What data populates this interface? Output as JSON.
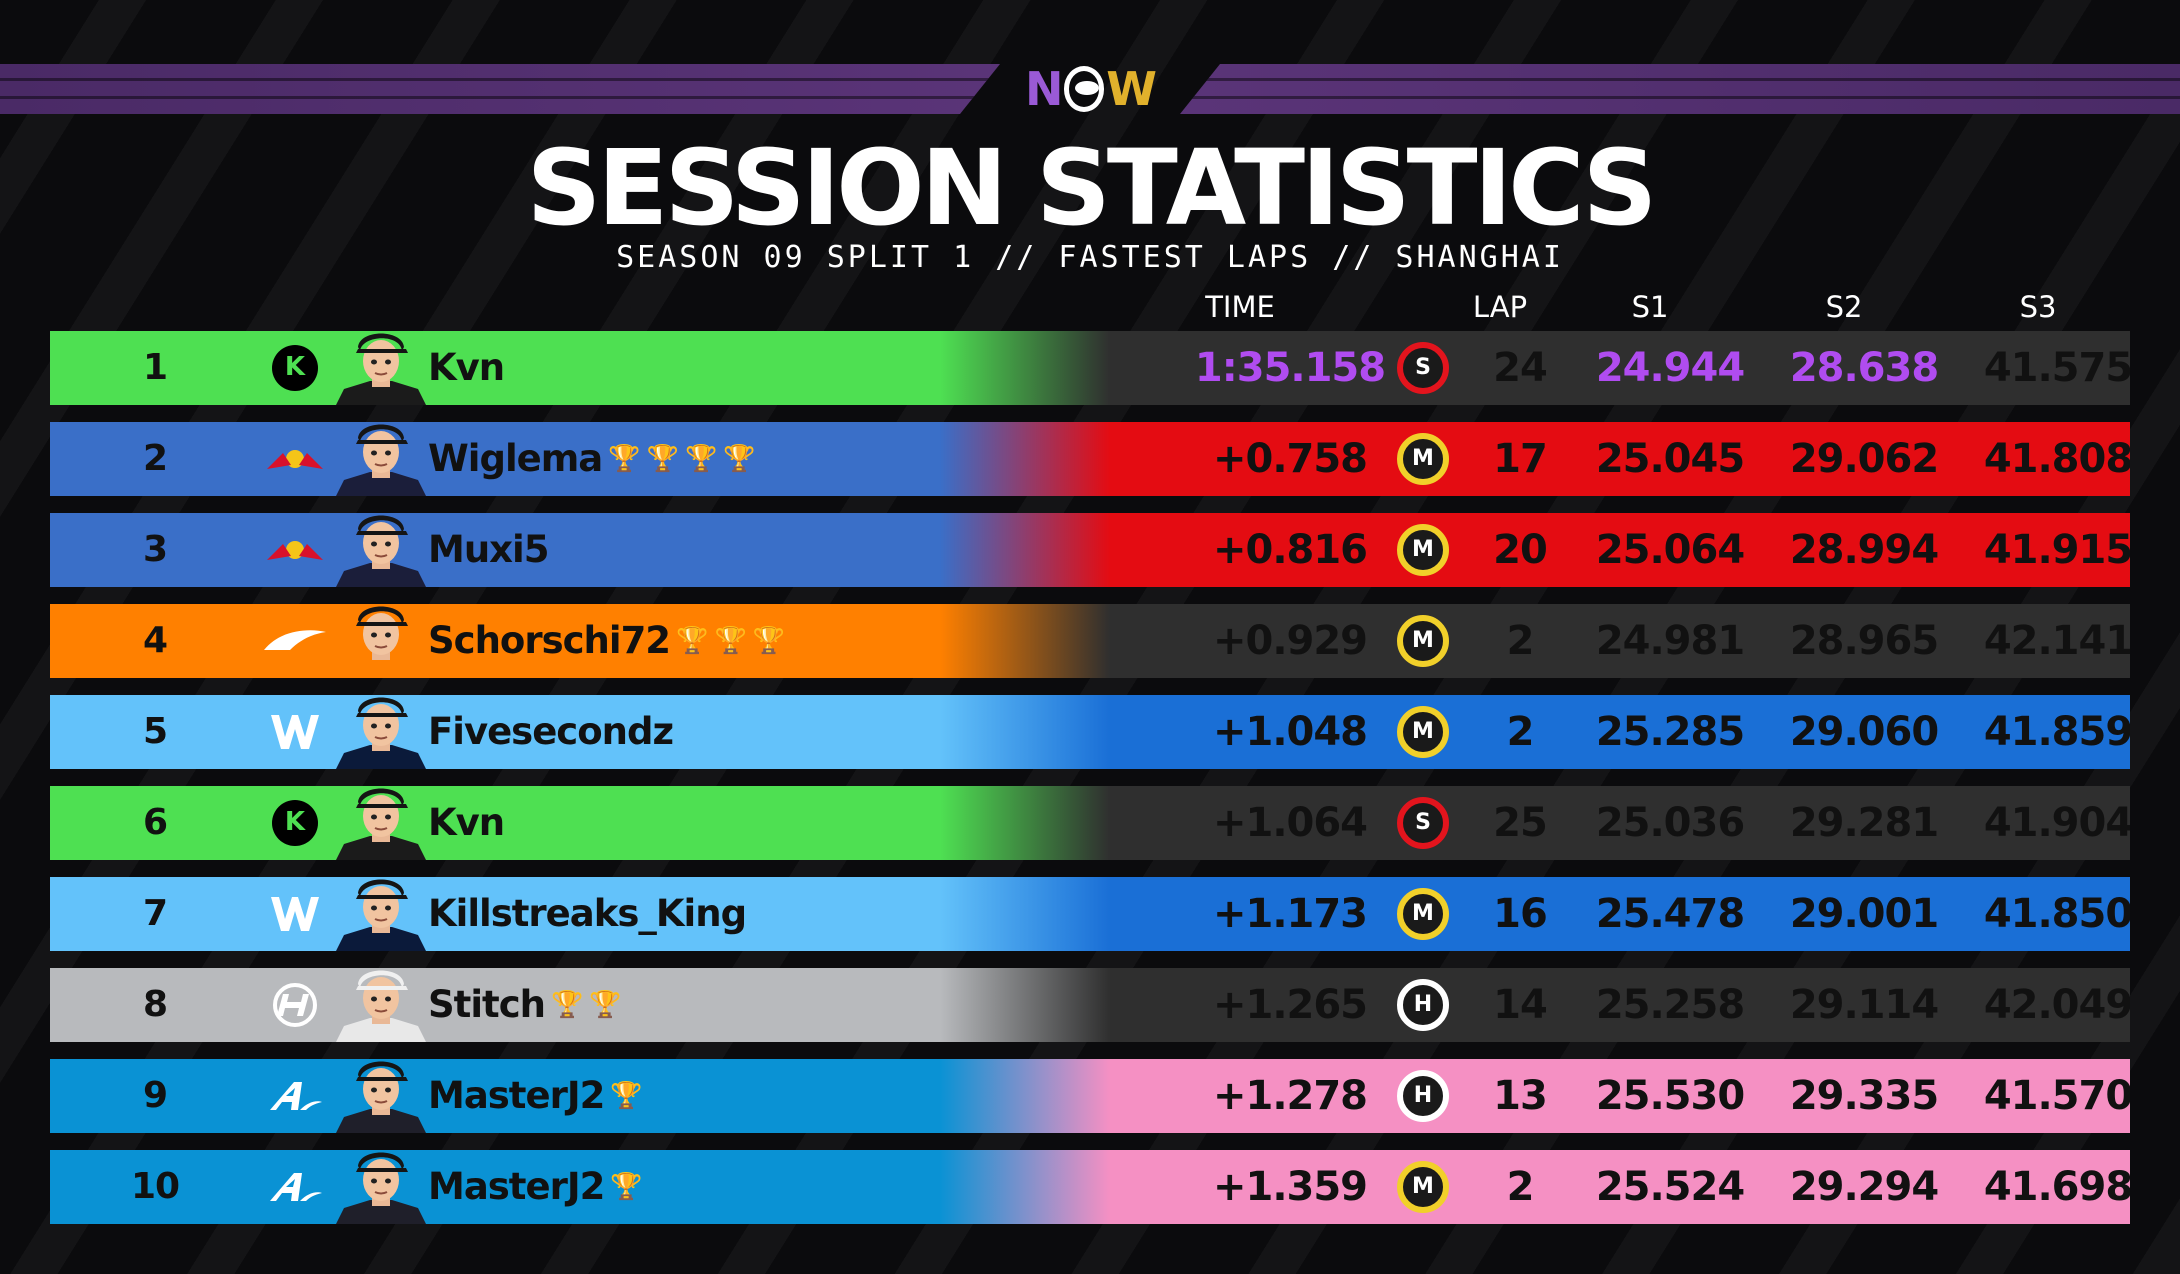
{
  "header": {
    "logo": {
      "n": "N",
      "w": "W"
    },
    "title": "SESSION STATISTICS",
    "subtitle": "SEASON 09 SPLIT 1 // FASTEST LAPS // SHANGHAI"
  },
  "columns": {
    "time": "TIME",
    "lap": "LAP",
    "s1": "S1",
    "s2": "S2",
    "s3": "S3"
  },
  "colors": {
    "purple": "#b04cf0",
    "soft": "#e3141d",
    "medium": "#f1d02a",
    "hard": "#ffffff"
  },
  "rows": [
    {
      "pos": "1",
      "team": "sauber",
      "team_icon": "sauber-k-icon",
      "team_color": "#4ee052",
      "data_color": "#2f2f2f",
      "name": "Kvn",
      "trophies": [],
      "time": "1:35.158",
      "tyre": "S",
      "lap": "24",
      "s1": "24.944",
      "s2": "28.638",
      "s3": "41.575",
      "time_purple": true,
      "s1_purple": true,
      "s2_purple": true
    },
    {
      "pos": "2",
      "team": "redbull",
      "team_icon": "redbull-icon",
      "team_color": "#3a6fc8",
      "data_color": "#e40c12",
      "name": "Wiglema",
      "trophies": [
        "🏆",
        "🏆",
        "🏆",
        "🏆"
      ],
      "time": "+0.758",
      "tyre": "M",
      "lap": "17",
      "s1": "25.045",
      "s2": "29.062",
      "s3": "41.808"
    },
    {
      "pos": "3",
      "team": "redbull",
      "team_icon": "redbull-icon",
      "team_color": "#3a6fc8",
      "data_color": "#e40c12",
      "name": "Muxi5",
      "trophies": [],
      "time": "+0.816",
      "tyre": "M",
      "lap": "20",
      "s1": "25.064",
      "s2": "28.994",
      "s3": "41.915"
    },
    {
      "pos": "4",
      "team": "mclaren",
      "team_icon": "mclaren-swoosh-icon",
      "team_color": "#ff8000",
      "data_color": "#2f2f2f",
      "name": "Schorschi72",
      "trophies": [
        "🏆",
        "🏆",
        "🏆"
      ],
      "time": "+0.929",
      "tyre": "M",
      "lap": "2",
      "s1": "24.981",
      "s2": "28.965",
      "s3": "42.141"
    },
    {
      "pos": "5",
      "team": "williams",
      "team_icon": "williams-w-icon",
      "team_color": "#63c2fa",
      "data_color": "#1a6fd6",
      "name": "Fivesecondz",
      "trophies": [],
      "time": "+1.048",
      "tyre": "M",
      "lap": "2",
      "s1": "25.285",
      "s2": "29.060",
      "s3": "41.859"
    },
    {
      "pos": "6",
      "team": "sauber",
      "team_icon": "sauber-k-icon",
      "team_color": "#4ee052",
      "data_color": "#2f2f2f",
      "name": "Kvn",
      "trophies": [],
      "time": "+1.064",
      "tyre": "S",
      "lap": "25",
      "s1": "25.036",
      "s2": "29.281",
      "s3": "41.904"
    },
    {
      "pos": "7",
      "team": "williams",
      "team_icon": "williams-w-icon",
      "team_color": "#63c2fa",
      "data_color": "#1a6fd6",
      "name": "Killstreaks_King",
      "trophies": [],
      "time": "+1.173",
      "tyre": "M",
      "lap": "16",
      "s1": "25.478",
      "s2": "29.001",
      "s3": "41.850"
    },
    {
      "pos": "8",
      "team": "haas",
      "team_icon": "haas-icon",
      "team_color": "#b8babd",
      "data_color": "#2f2f2f",
      "name": "Stitch",
      "trophies": [
        "🏆",
        "🏆"
      ],
      "time": "+1.265",
      "tyre": "H",
      "lap": "14",
      "s1": "25.258",
      "s2": "29.114",
      "s3": "42.049"
    },
    {
      "pos": "9",
      "team": "alpine",
      "team_icon": "alpine-a-icon",
      "team_color": "#0a92d4",
      "data_color": "#f590c3",
      "name": "MasterJ2",
      "trophies": [
        "🏆"
      ],
      "time": "+1.278",
      "tyre": "H",
      "lap": "13",
      "s1": "25.530",
      "s2": "29.335",
      "s3": "41.570"
    },
    {
      "pos": "10",
      "team": "alpine",
      "team_icon": "alpine-a-icon",
      "team_color": "#0a92d4",
      "data_color": "#f590c3",
      "name": "MasterJ2",
      "trophies": [
        "🏆"
      ],
      "time": "+1.359",
      "tyre": "M",
      "lap": "2",
      "s1": "25.524",
      "s2": "29.294",
      "s3": "41.698"
    }
  ]
}
